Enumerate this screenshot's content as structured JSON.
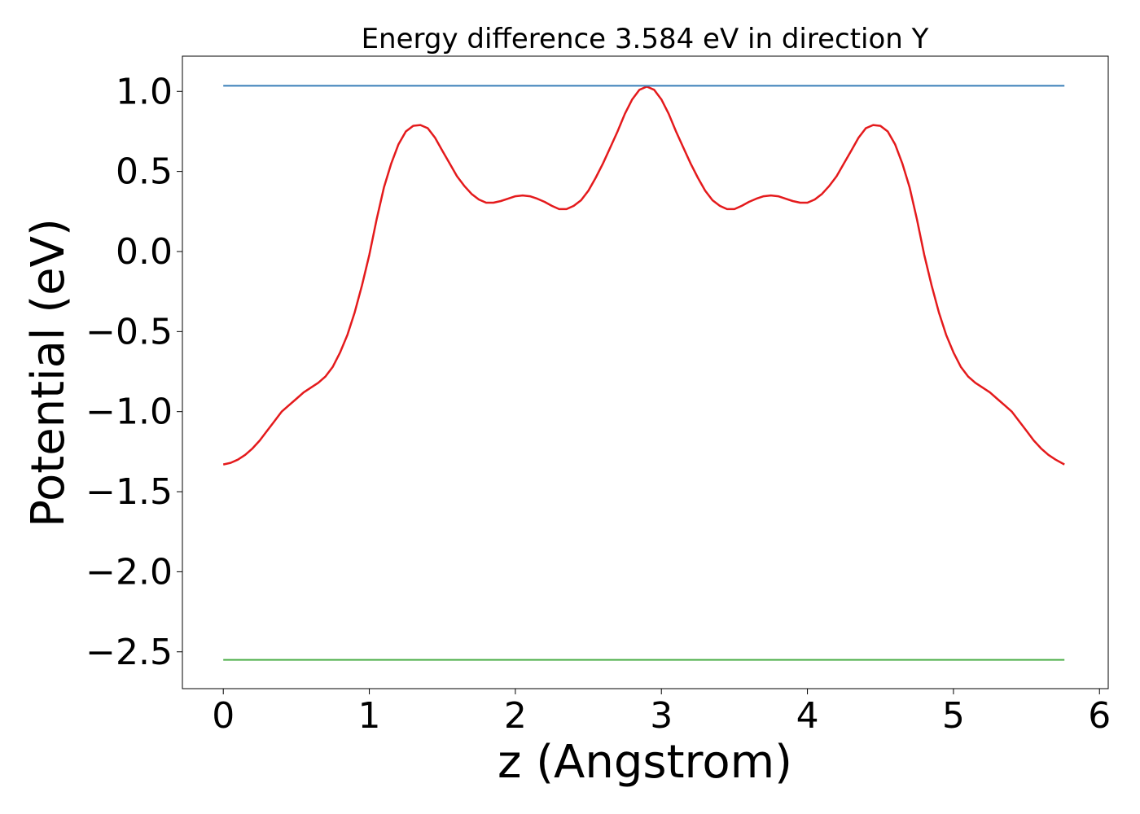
{
  "chart_data": {
    "type": "line",
    "title": "Energy difference 3.584 eV in direction Y",
    "xlabel": "z (Angstrom)",
    "ylabel": "Potential (eV)",
    "xlim": [
      -0.28,
      6.06
    ],
    "ylim": [
      -2.73,
      1.22
    ],
    "xticks": [
      0,
      1,
      2,
      3,
      4,
      5,
      6
    ],
    "xtick_labels": [
      "0",
      "1",
      "2",
      "3",
      "4",
      "5",
      "6"
    ],
    "yticks": [
      1.0,
      0.5,
      0.0,
      -0.5,
      -1.0,
      -1.5,
      -2.0,
      -2.5
    ],
    "ytick_labels": [
      "1.0",
      "0.5",
      "0.0",
      "−0.5",
      "−1.0",
      "−1.5",
      "−2.0",
      "−2.5"
    ],
    "grid": false,
    "colors": {
      "potential": "#e41a1c",
      "vacuum_level": "#377eb8",
      "fermi_level": "#4daf4a"
    },
    "series": [
      {
        "values": [
          [
            0.0,
            -1.33
          ],
          [
            0.05,
            -1.32
          ],
          [
            0.1,
            -1.3
          ],
          [
            0.15,
            -1.27
          ],
          [
            0.2,
            -1.23
          ],
          [
            0.25,
            -1.18
          ],
          [
            0.3,
            -1.12
          ],
          [
            0.35,
            -1.06
          ],
          [
            0.4,
            -1.0
          ],
          [
            0.45,
            -0.96
          ],
          [
            0.5,
            -0.92
          ],
          [
            0.55,
            -0.88
          ],
          [
            0.6,
            -0.85
          ],
          [
            0.65,
            -0.82
          ],
          [
            0.7,
            -0.78
          ],
          [
            0.75,
            -0.72
          ],
          [
            0.8,
            -0.63
          ],
          [
            0.85,
            -0.52
          ],
          [
            0.9,
            -0.38
          ],
          [
            0.95,
            -0.21
          ],
          [
            1.0,
            -0.02
          ],
          [
            1.05,
            0.2
          ],
          [
            1.1,
            0.4
          ],
          [
            1.15,
            0.55
          ],
          [
            1.2,
            0.67
          ],
          [
            1.25,
            0.75
          ],
          [
            1.3,
            0.785
          ],
          [
            1.35,
            0.79
          ],
          [
            1.4,
            0.77
          ],
          [
            1.45,
            0.71
          ],
          [
            1.5,
            0.63
          ],
          [
            1.55,
            0.55
          ],
          [
            1.6,
            0.47
          ],
          [
            1.65,
            0.41
          ],
          [
            1.7,
            0.36
          ],
          [
            1.75,
            0.325
          ],
          [
            1.8,
            0.305
          ],
          [
            1.85,
            0.305
          ],
          [
            1.9,
            0.315
          ],
          [
            1.95,
            0.33
          ],
          [
            2.0,
            0.345
          ],
          [
            2.05,
            0.35
          ],
          [
            2.1,
            0.345
          ],
          [
            2.15,
            0.33
          ],
          [
            2.2,
            0.31
          ],
          [
            2.25,
            0.285
          ],
          [
            2.3,
            0.265
          ],
          [
            2.35,
            0.265
          ],
          [
            2.4,
            0.285
          ],
          [
            2.45,
            0.32
          ],
          [
            2.5,
            0.38
          ],
          [
            2.55,
            0.46
          ],
          [
            2.6,
            0.55
          ],
          [
            2.65,
            0.65
          ],
          [
            2.7,
            0.75
          ],
          [
            2.75,
            0.86
          ],
          [
            2.8,
            0.95
          ],
          [
            2.85,
            1.01
          ],
          [
            2.9,
            1.03
          ],
          [
            2.95,
            1.01
          ],
          [
            3.0,
            0.95
          ],
          [
            3.05,
            0.86
          ],
          [
            3.1,
            0.75
          ],
          [
            3.15,
            0.65
          ],
          [
            3.2,
            0.55
          ],
          [
            3.25,
            0.46
          ],
          [
            3.3,
            0.38
          ],
          [
            3.35,
            0.32
          ],
          [
            3.4,
            0.285
          ],
          [
            3.45,
            0.265
          ],
          [
            3.5,
            0.265
          ],
          [
            3.55,
            0.285
          ],
          [
            3.6,
            0.31
          ],
          [
            3.65,
            0.33
          ],
          [
            3.7,
            0.345
          ],
          [
            3.75,
            0.35
          ],
          [
            3.8,
            0.345
          ],
          [
            3.85,
            0.33
          ],
          [
            3.9,
            0.315
          ],
          [
            3.95,
            0.305
          ],
          [
            4.0,
            0.305
          ],
          [
            4.05,
            0.325
          ],
          [
            4.1,
            0.36
          ],
          [
            4.15,
            0.41
          ],
          [
            4.2,
            0.47
          ],
          [
            4.25,
            0.55
          ],
          [
            4.3,
            0.63
          ],
          [
            4.35,
            0.71
          ],
          [
            4.4,
            0.77
          ],
          [
            4.45,
            0.79
          ],
          [
            4.5,
            0.785
          ],
          [
            4.55,
            0.75
          ],
          [
            4.6,
            0.67
          ],
          [
            4.65,
            0.55
          ],
          [
            4.7,
            0.4
          ],
          [
            4.75,
            0.2
          ],
          [
            4.8,
            -0.02
          ],
          [
            4.85,
            -0.21
          ],
          [
            4.9,
            -0.38
          ],
          [
            4.95,
            -0.52
          ],
          [
            5.0,
            -0.63
          ],
          [
            5.05,
            -0.72
          ],
          [
            5.1,
            -0.78
          ],
          [
            5.15,
            -0.82
          ],
          [
            5.2,
            -0.85
          ],
          [
            5.25,
            -0.88
          ],
          [
            5.3,
            -0.92
          ],
          [
            5.35,
            -0.96
          ],
          [
            5.4,
            -1.0
          ],
          [
            5.45,
            -1.06
          ],
          [
            5.5,
            -1.12
          ],
          [
            5.55,
            -1.18
          ],
          [
            5.6,
            -1.23
          ],
          [
            5.65,
            -1.27
          ],
          [
            5.7,
            -1.3
          ],
          [
            5.76,
            -1.33
          ]
        ]
      },
      {
        "values": [
          [
            0.0,
            1.035
          ],
          [
            5.76,
            1.035
          ]
        ]
      },
      {
        "values": [
          [
            0.0,
            -2.55
          ],
          [
            5.76,
            -2.55
          ]
        ]
      }
    ]
  }
}
